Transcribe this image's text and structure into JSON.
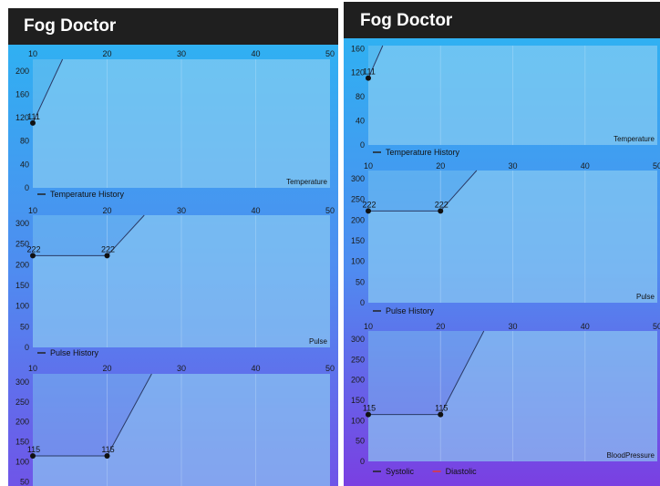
{
  "app": {
    "title": "Fog Doctor"
  },
  "colors": {
    "app_bar": "#1f1f1f",
    "plot_fill": "#7ec8f0",
    "line": "#2a3a66",
    "point": "#111111",
    "legend_line": "#222222",
    "diastolic": "#e53935"
  },
  "screens": [
    {
      "name": "left",
      "charts": [
        {
          "type": "line",
          "x_ticks": [
            "10",
            "20",
            "30",
            "40",
            "50"
          ],
          "y_ticks": [
            "0",
            "40",
            "80",
            "120",
            "160",
            "200"
          ],
          "chart_description": "Temperature",
          "legend": [
            {
              "label": "Temperature History",
              "color": "#222222"
            }
          ],
          "points": [
            {
              "x": 10,
              "y": 111,
              "label": "111"
            },
            {
              "x": 14,
              "y": 220,
              "label": ""
            }
          ],
          "xlim": [
            10,
            50
          ],
          "ylim": [
            0,
            220
          ]
        },
        {
          "type": "line",
          "x_ticks": [
            "10",
            "20",
            "30",
            "40",
            "50"
          ],
          "y_ticks": [
            "0",
            "50",
            "100",
            "150",
            "200",
            "250",
            "300"
          ],
          "chart_description": "Pulse",
          "legend": [
            {
              "label": "Pulse History",
              "color": "#222222"
            }
          ],
          "points": [
            {
              "x": 10,
              "y": 222,
              "label": "222"
            },
            {
              "x": 20,
              "y": 222,
              "label": "222"
            },
            {
              "x": 25,
              "y": 320,
              "label": ""
            }
          ],
          "xlim": [
            10,
            50
          ],
          "ylim": [
            0,
            320
          ]
        },
        {
          "type": "line",
          "x_ticks": [
            "10",
            "20",
            "30",
            "40",
            "50"
          ],
          "y_ticks": [
            "50",
            "100",
            "150",
            "200",
            "250",
            "300"
          ],
          "chart_description": "",
          "legend": [],
          "points": [
            {
              "x": 10,
              "y": 115,
              "label": "115"
            },
            {
              "x": 20,
              "y": 115,
              "label": "115"
            },
            {
              "x": 26,
              "y": 320,
              "label": ""
            }
          ],
          "xlim": [
            10,
            50
          ],
          "ylim": [
            40,
            320
          ]
        }
      ]
    },
    {
      "name": "right",
      "charts": [
        {
          "type": "line",
          "x_ticks": [],
          "y_ticks": [
            "0",
            "40",
            "80",
            "120",
            "160"
          ],
          "chart_description": "Temperature",
          "legend": [
            {
              "label": "Temperature History",
              "color": "#222222"
            }
          ],
          "points": [
            {
              "x": 10,
              "y": 111,
              "label": "111"
            },
            {
              "x": 12,
              "y": 165,
              "label": ""
            }
          ],
          "xlim": [
            10,
            50
          ],
          "ylim": [
            0,
            165
          ]
        },
        {
          "type": "line",
          "x_ticks": [
            "10",
            "20",
            "30",
            "40",
            "50"
          ],
          "y_ticks": [
            "0",
            "50",
            "100",
            "150",
            "200",
            "250",
            "300"
          ],
          "chart_description": "Pulse",
          "legend": [
            {
              "label": "Pulse History",
              "color": "#222222"
            }
          ],
          "points": [
            {
              "x": 10,
              "y": 222,
              "label": "222"
            },
            {
              "x": 20,
              "y": 222,
              "label": "222"
            },
            {
              "x": 25,
              "y": 320,
              "label": ""
            }
          ],
          "xlim": [
            10,
            50
          ],
          "ylim": [
            0,
            320
          ]
        },
        {
          "type": "line",
          "x_ticks": [
            "10",
            "20",
            "30",
            "40",
            "50"
          ],
          "y_ticks": [
            "0",
            "50",
            "100",
            "150",
            "200",
            "250",
            "300"
          ],
          "chart_description": "BloodPressure",
          "legend": [
            {
              "label": "Systolic",
              "color": "#222222"
            },
            {
              "label": "Diastolic",
              "color": "#e53935"
            }
          ],
          "points": [
            {
              "x": 10,
              "y": 115,
              "label": "115"
            },
            {
              "x": 20,
              "y": 115,
              "label": "115"
            },
            {
              "x": 26,
              "y": 320,
              "label": ""
            }
          ],
          "xlim": [
            10,
            50
          ],
          "ylim": [
            0,
            320
          ]
        }
      ]
    }
  ],
  "chart_data": [
    {
      "type": "line",
      "title": "",
      "xlabel": "",
      "ylabel": "",
      "x_ticks": [
        "10",
        "20",
        "30",
        "40",
        "50"
      ],
      "y_ticks": [
        "0",
        "40",
        "80",
        "120",
        "160",
        "200"
      ],
      "description_label": "Temperature",
      "series": [
        {
          "name": "Temperature History",
          "x": [
            10
          ],
          "y": [
            111
          ],
          "data_labels": [
            "111"
          ]
        }
      ],
      "xlim": [
        10,
        50
      ],
      "ylim": [
        0,
        220
      ],
      "grid": true,
      "legend": "bottom-left"
    },
    {
      "type": "line",
      "title": "",
      "xlabel": "",
      "ylabel": "",
      "x_ticks": [
        "10",
        "20",
        "30",
        "40",
        "50"
      ],
      "y_ticks": [
        "0",
        "50",
        "100",
        "150",
        "200",
        "250",
        "300"
      ],
      "description_label": "Pulse",
      "series": [
        {
          "name": "Pulse History",
          "x": [
            10,
            20
          ],
          "y": [
            222,
            222
          ],
          "data_labels": [
            "222",
            "222"
          ]
        }
      ],
      "xlim": [
        10,
        50
      ],
      "ylim": [
        0,
        320
      ],
      "grid": true,
      "legend": "bottom-left"
    },
    {
      "type": "line",
      "title": "",
      "xlabel": "",
      "ylabel": "",
      "x_ticks": [
        "10",
        "20",
        "30",
        "40",
        "50"
      ],
      "y_ticks": [
        "50",
        "100",
        "150",
        "200",
        "250",
        "300"
      ],
      "description_label": "",
      "series": [
        {
          "x": [
            10,
            20
          ],
          "y": [
            115,
            115
          ],
          "data_labels": [
            "115",
            "115"
          ]
        }
      ],
      "xlim": [
        10,
        50
      ],
      "ylim": [
        40,
        320
      ],
      "grid": true,
      "legend": ""
    },
    {
      "type": "line",
      "title": "",
      "xlabel": "",
      "ylabel": "",
      "x_ticks": [],
      "y_ticks": [
        "0",
        "40",
        "80",
        "120",
        "160"
      ],
      "description_label": "Temperature",
      "series": [
        {
          "name": "Temperature History",
          "x": [
            10
          ],
          "y": [
            111
          ],
          "data_labels": [
            "111"
          ]
        }
      ],
      "xlim": [
        10,
        50
      ],
      "ylim": [
        0,
        165
      ],
      "grid": true,
      "legend": "bottom-left"
    },
    {
      "type": "line",
      "title": "",
      "xlabel": "",
      "ylabel": "",
      "x_ticks": [
        "10",
        "20",
        "30",
        "40",
        "50"
      ],
      "y_ticks": [
        "0",
        "50",
        "100",
        "150",
        "200",
        "250",
        "300"
      ],
      "description_label": "Pulse",
      "series": [
        {
          "name": "Pulse History",
          "x": [
            10,
            20
          ],
          "y": [
            222,
            222
          ],
          "data_labels": [
            "222",
            "222"
          ]
        }
      ],
      "xlim": [
        10,
        50
      ],
      "ylim": [
        0,
        320
      ],
      "grid": true,
      "legend": "bottom-left"
    },
    {
      "type": "line",
      "title": "",
      "xlabel": "",
      "ylabel": "",
      "x_ticks": [
        "10",
        "20",
        "30",
        "40",
        "50"
      ],
      "y_ticks": [
        "0",
        "50",
        "100",
        "150",
        "200",
        "250",
        "300"
      ],
      "description_label": "BloodPressure",
      "series": [
        {
          "name": "Systolic",
          "x": [
            10,
            20
          ],
          "y": [
            115,
            115
          ],
          "data_labels": [
            "115",
            "115"
          ]
        },
        {
          "name": "Diastolic",
          "x": [],
          "y": []
        }
      ],
      "xlim": [
        10,
        50
      ],
      "ylim": [
        0,
        320
      ],
      "grid": true,
      "legend": "bottom-left"
    }
  ]
}
